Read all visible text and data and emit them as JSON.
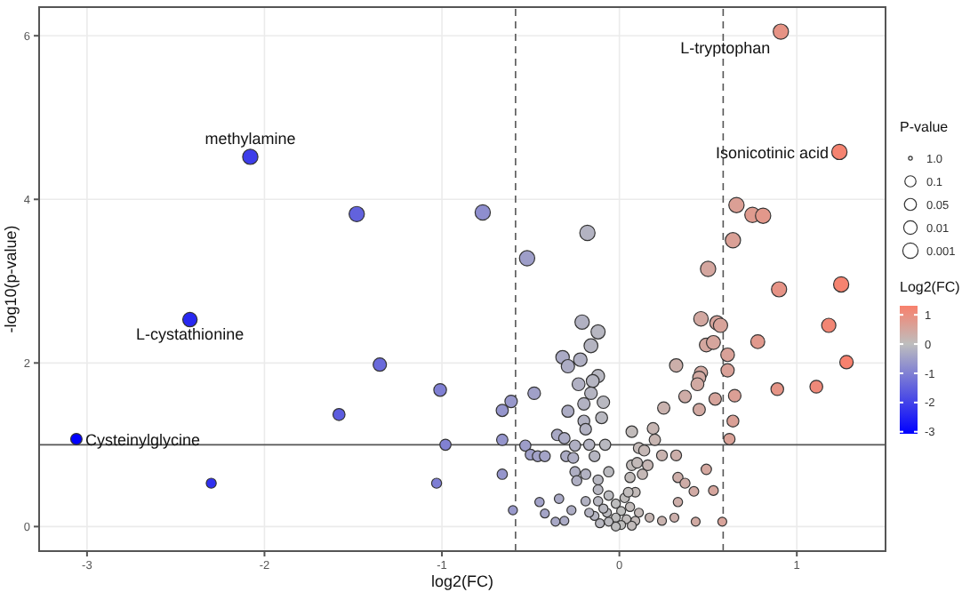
{
  "chart_data": {
    "type": "bubble",
    "xlabel": "log2(FC)",
    "ylabel": "-log10(p-value)",
    "legend_title": "P-value",
    "clabel": "Log2(FC)",
    "xlim": [
      -3.27,
      1.5
    ],
    "ylim": [
      -0.3,
      6.35
    ],
    "xticks": [
      -3,
      -2,
      -1,
      0,
      1
    ],
    "yticks": [
      0,
      2,
      4,
      6
    ],
    "grid": true,
    "clim": [
      -3.07,
      1.31
    ],
    "cticks": [
      -3,
      -2,
      -1,
      0,
      1
    ],
    "size_legend": [
      {
        "value": 0.06,
        "label": "1.0"
      },
      {
        "value": 0.53,
        "label": "0.1"
      },
      {
        "value": 0.62,
        "label": "0.05"
      },
      {
        "value": 0.77,
        "label": "0.01"
      },
      {
        "value": 1,
        "label": "0.001"
      }
    ],
    "ref_lines": [
      {
        "axis": "x",
        "value": -0.585,
        "line_style": "dashed"
      },
      {
        "axis": "x",
        "value": 0.585,
        "line_style": "dashed"
      },
      {
        "axis": "y",
        "value": 1,
        "line_style": "solid"
      }
    ],
    "annotations": [
      {
        "text": "L-tryptophan",
        "x": 0.91,
        "y": 6.05
      },
      {
        "text": "Isonicotinic acid",
        "x": 1.24,
        "y": 4.58
      },
      {
        "text": "methylamine",
        "x": -2.08,
        "y": 4.52
      },
      {
        "text": "L-cystathionine",
        "x": -2.42,
        "y": 2.53
      },
      {
        "text": "Cysteinylglycine",
        "x": -3.06,
        "y": 1.07
      }
    ],
    "x": [
      0.91,
      1.24,
      -2.08,
      -2.42,
      -3.06,
      -1.48,
      -0.77,
      -1.35,
      -1.01,
      -1.58,
      -0.98,
      -2.3,
      -1.03,
      -0.18,
      -0.52,
      0.66,
      0.75,
      0.81,
      0.64,
      0.5,
      0.9,
      1.25,
      1.18,
      0.78,
      1.28,
      0.89,
      1.11,
      0.46,
      0.55,
      0.57,
      0.49,
      0.53,
      0.61,
      0.61,
      0.32,
      0.46,
      0.45,
      0.44,
      0.37,
      0.54,
      0.65,
      0.45,
      0.25,
      0.64,
      0.62,
      0.19,
      0.07,
      0.2,
      0.11,
      0.24,
      0.32,
      0.33,
      0.37,
      0.42,
      0.49,
      0.53,
      0.33,
      0.17,
      0.24,
      0.31,
      0.43,
      0.58,
      -0.21,
      -0.12,
      -0.16,
      -0.32,
      -0.22,
      -0.29,
      -0.12,
      -0.15,
      -0.23,
      -0.16,
      -0.48,
      -0.61,
      -0.66,
      -0.09,
      -0.2,
      -0.29,
      -0.1,
      -0.2,
      -0.19,
      -0.35,
      -0.31,
      -0.66,
      -0.53,
      -0.25,
      -0.17,
      -0.08,
      -0.5,
      -0.46,
      -0.42,
      -0.3,
      -0.26,
      -0.14,
      -0.66,
      -0.25,
      -0.19,
      -0.06,
      -0.12,
      -0.24,
      -0.6,
      -0.45,
      -0.34,
      -0.42,
      -0.27,
      -0.36,
      -0.31,
      -0.19,
      0.07,
      0.14,
      0.1,
      0.16,
      0.06,
      0.13,
      0.09,
      0.03,
      -0.06,
      -0.12,
      -0.02,
      0.06,
      0.01,
      -0.07,
      -0.14,
      -0.02,
      0.04,
      0.09,
      -0.06,
      0.01,
      -0.11,
      -0.02,
      0.07,
      -0.09,
      -0.17,
      0.11,
      0.05,
      -0.12
    ],
    "values": [
      6.05,
      4.58,
      4.52,
      2.53,
      1.07,
      3.82,
      3.84,
      1.98,
      1.67,
      1.37,
      1.0,
      0.53,
      0.53,
      3.59,
      3.28,
      3.93,
      3.81,
      3.8,
      3.5,
      3.15,
      2.9,
      2.96,
      2.46,
      2.26,
      2.01,
      1.68,
      1.71,
      2.54,
      2.49,
      2.46,
      2.22,
      2.25,
      2.1,
      1.91,
      1.97,
      1.88,
      1.82,
      1.74,
      1.59,
      1.56,
      1.6,
      1.43,
      1.45,
      1.29,
      1.07,
      1.2,
      1.16,
      1.06,
      0.96,
      0.87,
      0.87,
      0.6,
      0.53,
      0.43,
      0.7,
      0.44,
      0.3,
      0.11,
      0.07,
      0.11,
      0.06,
      0.06,
      2.5,
      2.38,
      2.21,
      2.07,
      2.04,
      1.96,
      1.84,
      1.78,
      1.74,
      1.63,
      1.63,
      1.53,
      1.42,
      1.52,
      1.5,
      1.41,
      1.33,
      1.29,
      1.19,
      1.12,
      1.08,
      1.06,
      0.99,
      0.99,
      1.0,
      1.0,
      0.88,
      0.86,
      0.86,
      0.86,
      0.84,
      0.86,
      0.64,
      0.67,
      0.64,
      0.67,
      0.57,
      0.56,
      0.2,
      0.3,
      0.34,
      0.16,
      0.2,
      0.06,
      0.07,
      0.31,
      0.75,
      0.93,
      0.78,
      0.75,
      0.6,
      0.64,
      0.42,
      0.35,
      0.38,
      0.31,
      0.28,
      0.24,
      0.19,
      0.17,
      0.13,
      0.11,
      0.09,
      0.07,
      0.06,
      0.02,
      0.04,
      0.0,
      0.01,
      0.22,
      0.17,
      0.17,
      0.42,
      0.45
    ],
    "sizes": [
      1,
      1,
      1,
      0.89,
      0.55,
      1,
      1,
      0.76,
      0.69,
      0.62,
      0.53,
      0.43,
      0.43,
      1,
      1,
      1,
      1,
      1,
      1,
      1,
      0.98,
      0.99,
      0.87,
      0.83,
      0.77,
      0.69,
      0.7,
      0.9,
      0.88,
      0.87,
      0.82,
      0.83,
      0.79,
      0.75,
      0.76,
      0.74,
      0.73,
      0.71,
      0.67,
      0.66,
      0.67,
      0.64,
      0.64,
      0.6,
      0.55,
      0.58,
      0.57,
      0.55,
      0.52,
      0.5,
      0.5,
      0.44,
      0.43,
      0.4,
      0.46,
      0.41,
      0.37,
      0.34,
      0.34,
      0.34,
      0.34,
      0.34,
      0.88,
      0.85,
      0.82,
      0.78,
      0.78,
      0.76,
      0.73,
      0.71,
      0.71,
      0.68,
      0.68,
      0.66,
      0.63,
      0.66,
      0.65,
      0.63,
      0.61,
      0.6,
      0.58,
      0.56,
      0.55,
      0.55,
      0.53,
      0.53,
      0.53,
      0.53,
      0.5,
      0.5,
      0.5,
      0.5,
      0.5,
      0.5,
      0.45,
      0.45,
      0.45,
      0.45,
      0.43,
      0.43,
      0.35,
      0.37,
      0.38,
      0.34,
      0.35,
      0.34,
      0.34,
      0.37,
      0.48,
      0.52,
      0.48,
      0.48,
      0.44,
      0.45,
      0.4,
      0.38,
      0.39,
      0.37,
      0.36,
      0.36,
      0.34,
      0.34,
      0.34,
      0.34,
      0.34,
      0.34,
      0.34,
      0.34,
      0.34,
      0.34,
      0.34,
      0.35,
      0.34,
      0.34,
      0.4,
      0.41
    ],
    "cvalues": [
      0.91,
      1.24,
      -2.08,
      -2.42,
      -3.06,
      -1.48,
      -0.77,
      -1.35,
      -1.01,
      -1.58,
      -0.98,
      -2.3,
      -1.03,
      -0.18,
      -0.52,
      0.66,
      0.75,
      0.81,
      0.64,
      0.5,
      0.9,
      1.25,
      1.18,
      0.78,
      1.28,
      0.89,
      1.11,
      0.46,
      0.55,
      0.57,
      0.49,
      0.53,
      0.61,
      0.61,
      0.32,
      0.46,
      0.45,
      0.44,
      0.37,
      0.54,
      0.65,
      0.45,
      0.25,
      0.64,
      0.62,
      0.19,
      0.07,
      0.2,
      0.11,
      0.24,
      0.32,
      0.33,
      0.37,
      0.42,
      0.49,
      0.53,
      0.33,
      0.17,
      0.24,
      0.31,
      0.43,
      0.58,
      -0.21,
      -0.12,
      -0.16,
      -0.32,
      -0.22,
      -0.29,
      -0.12,
      -0.15,
      -0.23,
      -0.16,
      -0.48,
      -0.61,
      -0.66,
      -0.09,
      -0.2,
      -0.29,
      -0.1,
      -0.2,
      -0.19,
      -0.35,
      -0.31,
      -0.66,
      -0.53,
      -0.25,
      -0.17,
      -0.08,
      -0.5,
      -0.46,
      -0.42,
      -0.3,
      -0.26,
      -0.14,
      -0.66,
      -0.25,
      -0.19,
      -0.06,
      -0.12,
      -0.24,
      -0.6,
      -0.45,
      -0.34,
      -0.42,
      -0.27,
      -0.36,
      -0.31,
      -0.19,
      0.07,
      0.14,
      0.1,
      0.16,
      0.06,
      0.13,
      0.09,
      0.03,
      -0.06,
      -0.12,
      -0.02,
      0.06,
      0.01,
      -0.07,
      -0.14,
      -0.02,
      0.04,
      0.09,
      -0.06,
      0.01,
      -0.11,
      -0.02,
      0.07,
      -0.09,
      -0.17,
      0.11,
      0.05,
      -0.12
    ]
  }
}
